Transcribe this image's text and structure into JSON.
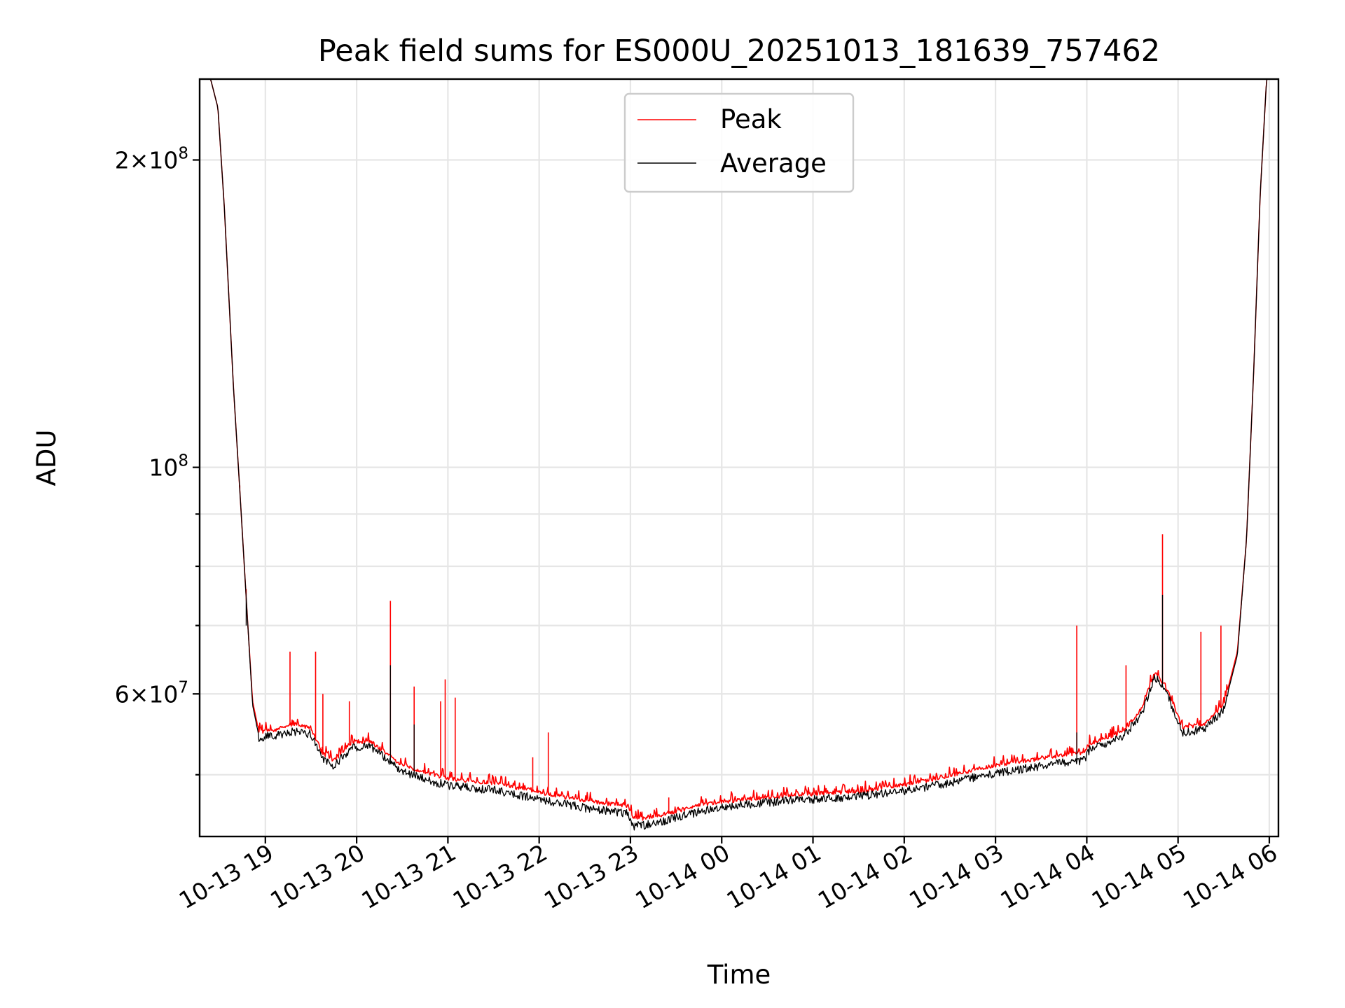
{
  "chart_data": {
    "type": "line",
    "title": "Peak field sums for ES000U_20251013_181639_757462",
    "xlabel": "Time",
    "ylabel": "ADU",
    "yscale": "log",
    "ylim": [
      43500000,
      240000000
    ],
    "xlim_hours": [
      18.28,
      30.1
    ],
    "grid": true,
    "legend_position": "upper center",
    "x_ticks": [
      {
        "hour": 19,
        "label": "10-13 19"
      },
      {
        "hour": 20,
        "label": "10-13 20"
      },
      {
        "hour": 21,
        "label": "10-13 21"
      },
      {
        "hour": 22,
        "label": "10-13 22"
      },
      {
        "hour": 23,
        "label": "10-13 23"
      },
      {
        "hour": 24,
        "label": "10-14 00"
      },
      {
        "hour": 25,
        "label": "10-14 01"
      },
      {
        "hour": 26,
        "label": "10-14 02"
      },
      {
        "hour": 27,
        "label": "10-14 03"
      },
      {
        "hour": 28,
        "label": "10-14 04"
      },
      {
        "hour": 29,
        "label": "10-14 05"
      },
      {
        "hour": 30,
        "label": "10-14 06"
      }
    ],
    "y_major_ticks": [
      {
        "value": 60000000,
        "base": "6",
        "exp": "7"
      },
      {
        "value": 100000000,
        "base": "",
        "exp": "8"
      },
      {
        "value": 200000000,
        "base": "2",
        "exp": "8"
      }
    ],
    "y_minor_ticks": [
      50000000,
      70000000,
      80000000,
      90000000
    ],
    "series": [
      {
        "name": "Peak",
        "color": "#ff0000",
        "points": [
          [
            18.28,
            240000000
          ],
          [
            18.4,
            240000000
          ],
          [
            18.48,
            225000000
          ],
          [
            18.55,
            180000000
          ],
          [
            18.65,
            120000000
          ],
          [
            18.72,
            95000000
          ],
          [
            18.8,
            72000000
          ],
          [
            18.86,
            59000000
          ],
          [
            18.93,
            55000000
          ],
          [
            19.1,
            55200000
          ],
          [
            19.3,
            56000000
          ],
          [
            19.5,
            55500000
          ],
          [
            19.62,
            52500000
          ],
          [
            19.75,
            51500000
          ],
          [
            19.95,
            53800000
          ],
          [
            20.15,
            53800000
          ],
          [
            20.32,
            52500000
          ],
          [
            20.5,
            51000000
          ],
          [
            20.75,
            50200000
          ],
          [
            21.0,
            49500000
          ],
          [
            21.5,
            49000000
          ],
          [
            22.0,
            48000000
          ],
          [
            22.5,
            47100000
          ],
          [
            22.98,
            46500000
          ],
          [
            23.03,
            45200000
          ],
          [
            23.25,
            45300000
          ],
          [
            23.5,
            46000000
          ],
          [
            23.8,
            46700000
          ],
          [
            24.2,
            47200000
          ],
          [
            24.8,
            47700000
          ],
          [
            25.5,
            48100000
          ],
          [
            26.0,
            48800000
          ],
          [
            26.5,
            49800000
          ],
          [
            27.0,
            51000000
          ],
          [
            27.5,
            51800000
          ],
          [
            27.98,
            52500000
          ],
          [
            28.03,
            53500000
          ],
          [
            28.4,
            55000000
          ],
          [
            28.6,
            58000000
          ],
          [
            28.75,
            63000000
          ],
          [
            28.9,
            60000000
          ],
          [
            29.05,
            55500000
          ],
          [
            29.3,
            56000000
          ],
          [
            29.5,
            58500000
          ],
          [
            29.65,
            66000000
          ],
          [
            29.75,
            85000000
          ],
          [
            29.83,
            125000000
          ],
          [
            29.9,
            185000000
          ],
          [
            29.97,
            240000000
          ],
          [
            30.1,
            240000000
          ]
        ],
        "spikes": [
          [
            18.72,
            96000000
          ],
          [
            18.79,
            76000000
          ],
          [
            19.27,
            66000000
          ],
          [
            19.55,
            66000000
          ],
          [
            19.63,
            60000000
          ],
          [
            19.92,
            59000000
          ],
          [
            20.37,
            74000000
          ],
          [
            20.63,
            61000000
          ],
          [
            20.92,
            59000000
          ],
          [
            20.97,
            62000000
          ],
          [
            21.08,
            59500000
          ],
          [
            21.93,
            52000000
          ],
          [
            22.1,
            55000000
          ],
          [
            23.42,
            47500000
          ],
          [
            27.89,
            70000000
          ],
          [
            28.43,
            64000000
          ],
          [
            28.83,
            86000000
          ],
          [
            29.25,
            69000000
          ],
          [
            29.47,
            70000000
          ]
        ],
        "noise": 0.03
      },
      {
        "name": "Average",
        "color": "#000000",
        "points": [
          [
            18.28,
            240000000
          ],
          [
            18.4,
            240000000
          ],
          [
            18.48,
            225000000
          ],
          [
            18.55,
            180000000
          ],
          [
            18.65,
            120000000
          ],
          [
            18.72,
            95000000
          ],
          [
            18.8,
            72000000
          ],
          [
            18.86,
            58500000
          ],
          [
            18.93,
            54500000
          ],
          [
            19.1,
            54700000
          ],
          [
            19.3,
            55300000
          ],
          [
            19.5,
            54900000
          ],
          [
            19.62,
            52000000
          ],
          [
            19.75,
            51000000
          ],
          [
            19.95,
            53300000
          ],
          [
            20.15,
            53300000
          ],
          [
            20.32,
            52000000
          ],
          [
            20.5,
            50500000
          ],
          [
            20.75,
            49600000
          ],
          [
            21.0,
            48900000
          ],
          [
            21.5,
            48400000
          ],
          [
            22.0,
            47400000
          ],
          [
            22.5,
            46500000
          ],
          [
            22.98,
            45900000
          ],
          [
            23.03,
            44600000
          ],
          [
            23.25,
            44800000
          ],
          [
            23.5,
            45500000
          ],
          [
            23.8,
            46200000
          ],
          [
            24.2,
            46800000
          ],
          [
            24.8,
            47300000
          ],
          [
            25.5,
            47700000
          ],
          [
            26.0,
            48300000
          ],
          [
            26.5,
            49200000
          ],
          [
            27.0,
            50300000
          ],
          [
            27.5,
            51100000
          ],
          [
            27.98,
            51800000
          ],
          [
            28.03,
            53000000
          ],
          [
            28.4,
            54500000
          ],
          [
            28.6,
            57500000
          ],
          [
            28.75,
            62500000
          ],
          [
            28.9,
            59500000
          ],
          [
            29.05,
            55000000
          ],
          [
            29.3,
            55600000
          ],
          [
            29.5,
            58000000
          ],
          [
            29.65,
            65500000
          ],
          [
            29.75,
            85000000
          ],
          [
            29.83,
            125000000
          ],
          [
            29.9,
            185000000
          ],
          [
            29.97,
            240000000
          ],
          [
            30.1,
            240000000
          ]
        ],
        "spikes": [
          [
            18.79,
            70000000
          ],
          [
            20.37,
            64000000
          ],
          [
            20.63,
            56000000
          ],
          [
            28.83,
            75000000
          ],
          [
            27.89,
            55000000
          ]
        ],
        "noise": 0.012
      }
    ]
  }
}
